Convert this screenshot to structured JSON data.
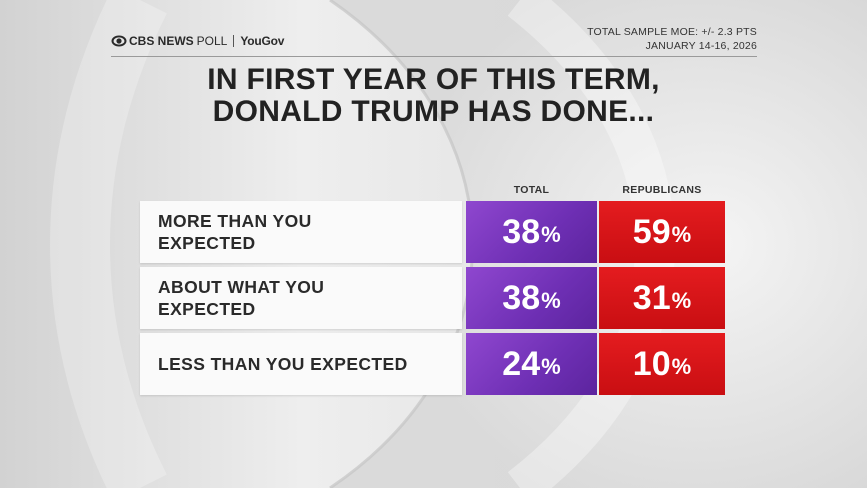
{
  "header": {
    "brand": "CBS NEWS",
    "poll_label": "POLL",
    "partner": "YouGov",
    "moe": "TOTAL SAMPLE MOE: +/- 2.3 PTS",
    "dates": "JANUARY 14-16, 2026"
  },
  "colors": {
    "total": "#7b3bbf",
    "republicans": "#d51418",
    "label_bg": "#fafafa",
    "text": "#222222"
  },
  "chart_data": {
    "type": "table",
    "title_line1": "IN FIRST YEAR OF THIS TERM,",
    "title_line2": "DONALD TRUMP HAS DONE...",
    "columns": [
      "TOTAL",
      "REPUBLICANS"
    ],
    "rows": [
      {
        "label_line1": "MORE THAN YOU",
        "label_line2": "EXPECTED",
        "values": [
          38,
          59
        ]
      },
      {
        "label_line1": "ABOUT WHAT YOU",
        "label_line2": "EXPECTED",
        "values": [
          38,
          31
        ]
      },
      {
        "label_line1": "LESS THAN YOU EXPECTED",
        "label_line2": "",
        "values": [
          24,
          10
        ]
      }
    ],
    "series": [
      {
        "name": "TOTAL",
        "values": [
          38,
          38,
          24
        ]
      },
      {
        "name": "REPUBLICANS",
        "values": [
          59,
          31,
          10
        ]
      }
    ],
    "unit": "%"
  }
}
